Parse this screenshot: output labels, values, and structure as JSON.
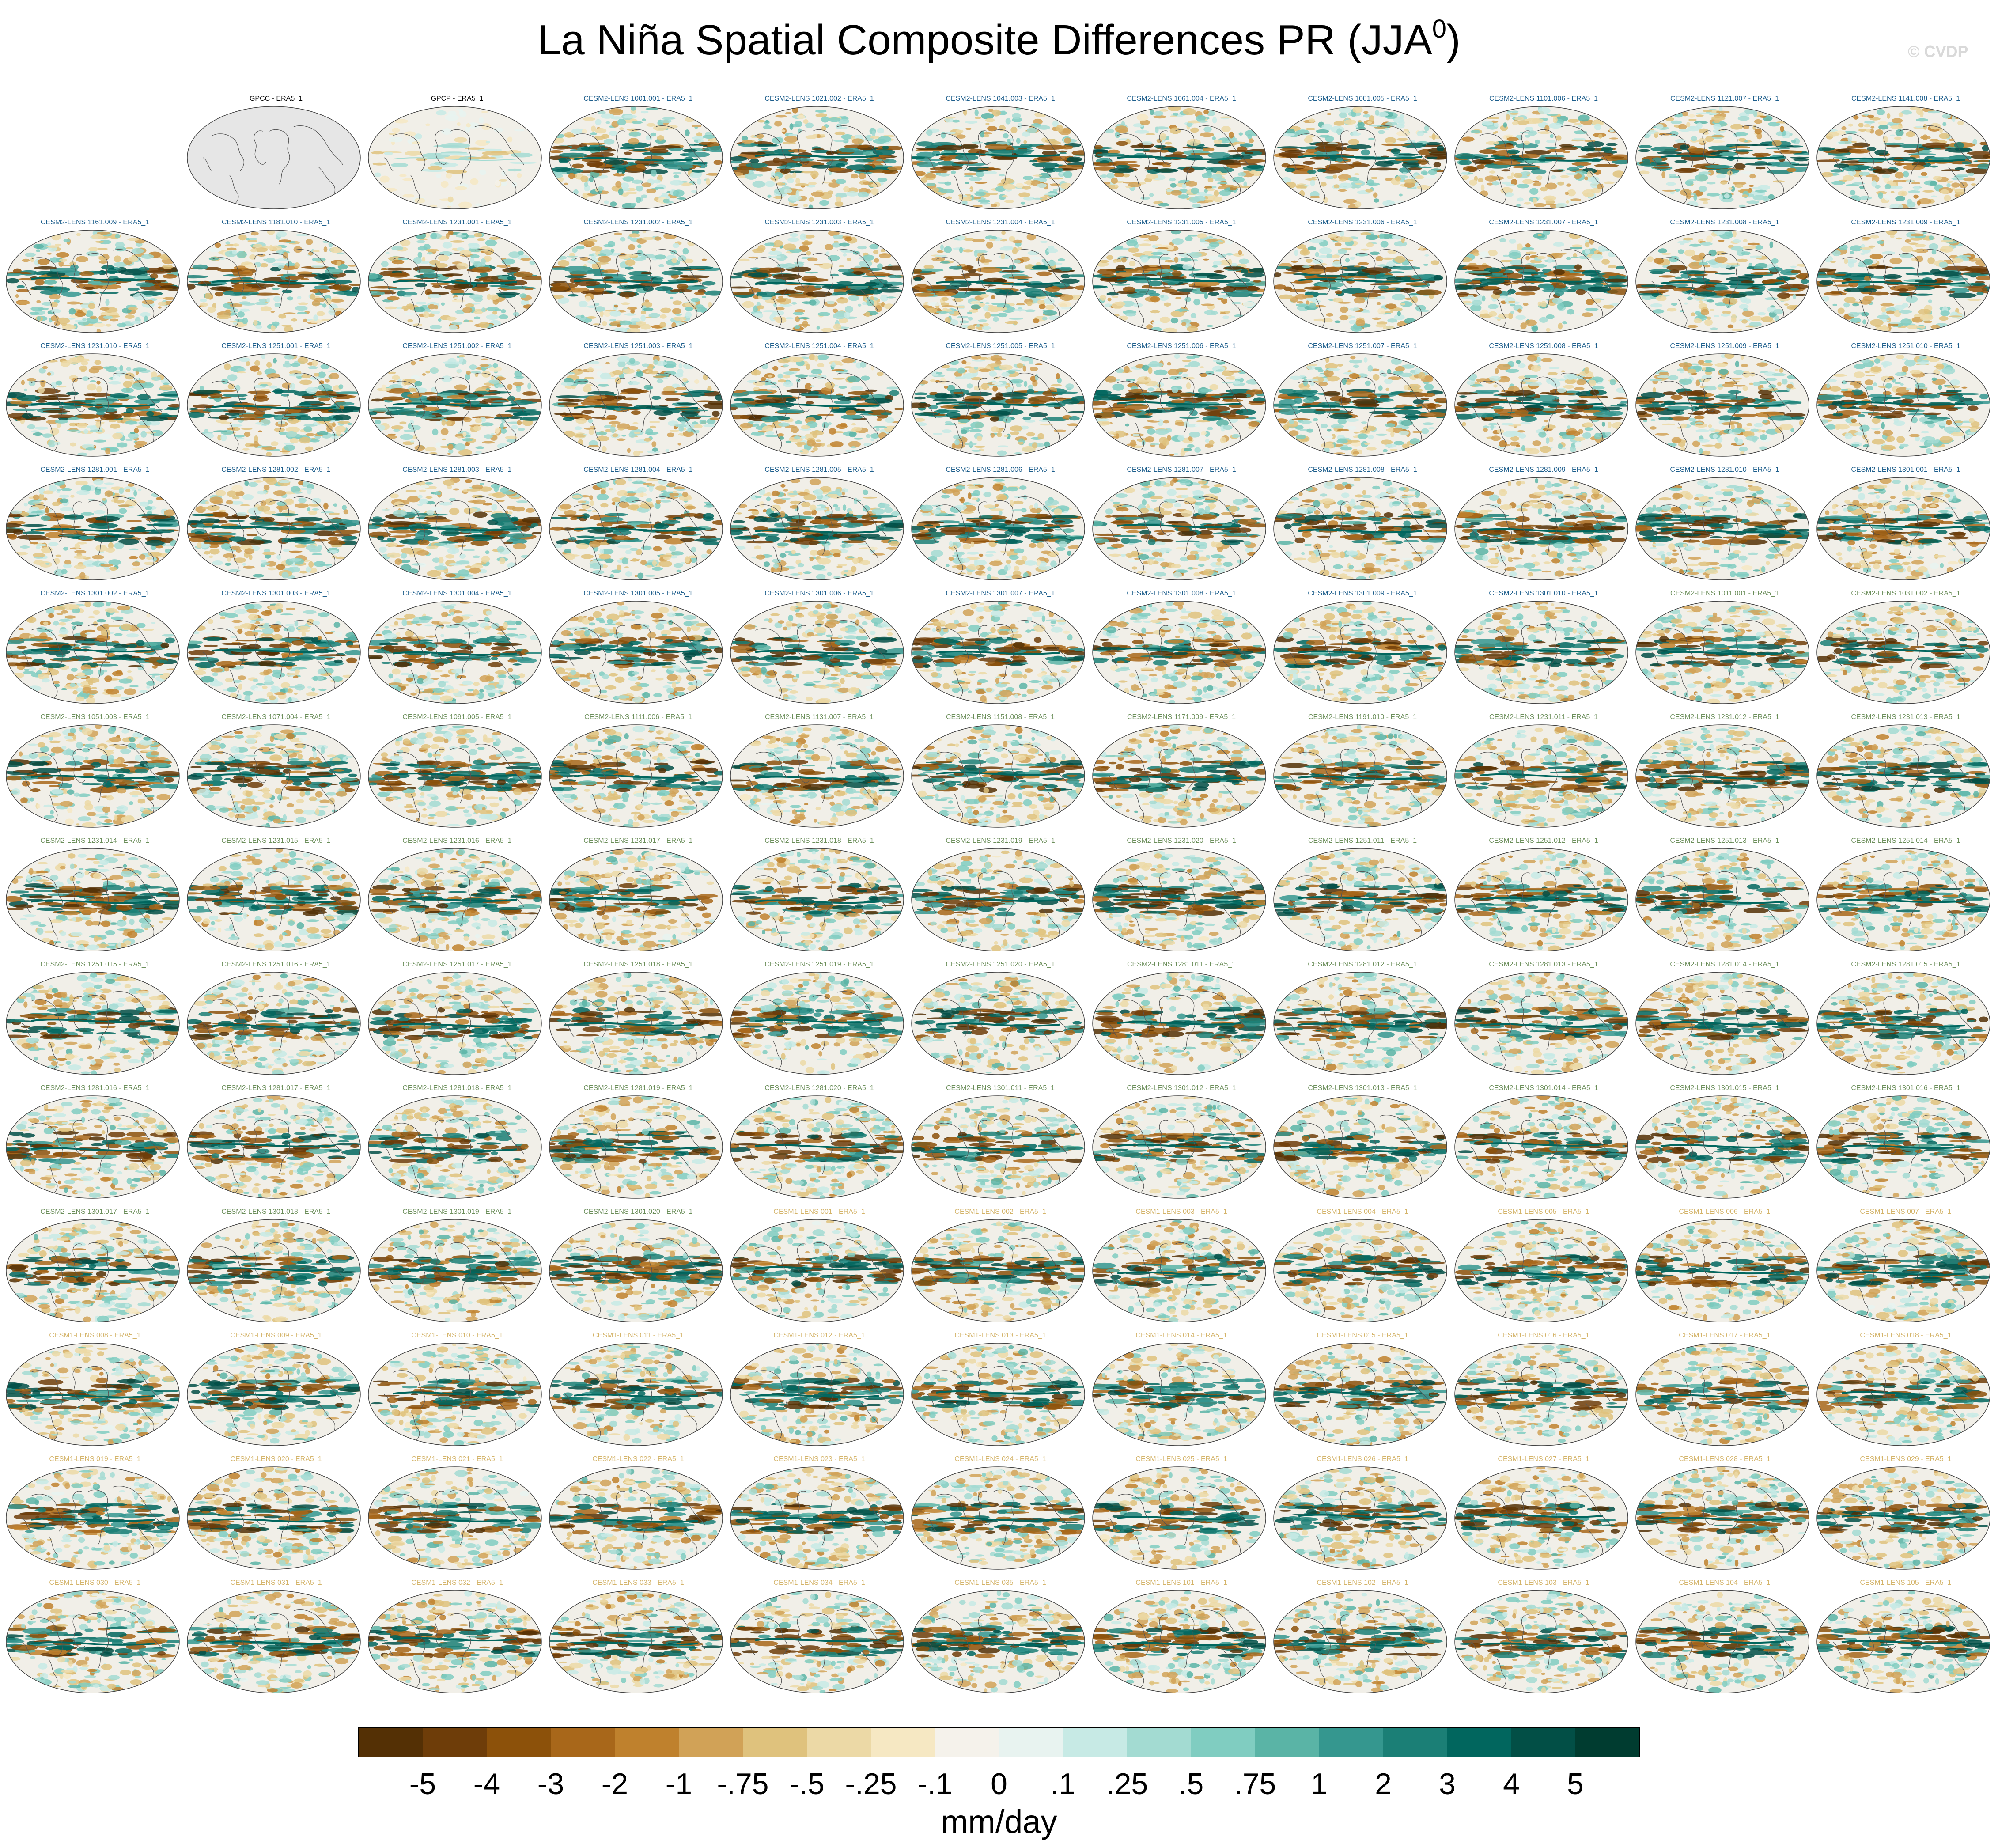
{
  "title_main": "La Niña Spatial Composite Differences PR (JJA",
  "title_sup": "0",
  "title_close": ")",
  "watermark": "© CVDP",
  "colors": {
    "obs_label": "#000000",
    "cesm2_smbb_label": "#1d5e8c",
    "cesm2_cmip6_label": "#6b8e5a",
    "cesm1_label": "#d4b46a",
    "land": "#f1efe8",
    "coast": "#555555"
  },
  "chart_data": {
    "type": "heatmap",
    "variable": "PR",
    "season": "JJA",
    "layout": "13 rows x 11 columns of small-multiple global maps",
    "panels": [
      "",
      "GPCC - ERA5_1",
      "GPCP - ERA5_1",
      "CESM2-LENS 1001.001 - ERA5_1",
      "CESM2-LENS 1021.002 - ERA5_1",
      "CESM2-LENS 1041.003 - ERA5_1",
      "CESM2-LENS 1061.004 - ERA5_1",
      "CESM2-LENS 1081.005 - ERA5_1",
      "CESM2-LENS 1101.006 - ERA5_1",
      "CESM2-LENS 1121.007 - ERA5_1",
      "CESM2-LENS 1141.008 - ERA5_1",
      "CESM2-LENS 1161.009 - ERA5_1",
      "CESM2-LENS 1181.010 - ERA5_1",
      "CESM2-LENS 1231.001 - ERA5_1",
      "CESM2-LENS 1231.002 - ERA5_1",
      "CESM2-LENS 1231.003 - ERA5_1",
      "CESM2-LENS 1231.004 - ERA5_1",
      "CESM2-LENS 1231.005 - ERA5_1",
      "CESM2-LENS 1231.006 - ERA5_1",
      "CESM2-LENS 1231.007 - ERA5_1",
      "CESM2-LENS 1231.008 - ERA5_1",
      "CESM2-LENS 1231.009 - ERA5_1",
      "CESM2-LENS 1231.010 - ERA5_1",
      "CESM2-LENS 1251.001 - ERA5_1",
      "CESM2-LENS 1251.002 - ERA5_1",
      "CESM2-LENS 1251.003 - ERA5_1",
      "CESM2-LENS 1251.004 - ERA5_1",
      "CESM2-LENS 1251.005 - ERA5_1",
      "CESM2-LENS 1251.006 - ERA5_1",
      "CESM2-LENS 1251.007 - ERA5_1",
      "CESM2-LENS 1251.008 - ERA5_1",
      "CESM2-LENS 1251.009 - ERA5_1",
      "CESM2-LENS 1251.010 - ERA5_1",
      "CESM2-LENS 1281.001 - ERA5_1",
      "CESM2-LENS 1281.002 - ERA5_1",
      "CESM2-LENS 1281.003 - ERA5_1",
      "CESM2-LENS 1281.004 - ERA5_1",
      "CESM2-LENS 1281.005 - ERA5_1",
      "CESM2-LENS 1281.006 - ERA5_1",
      "CESM2-LENS 1281.007 - ERA5_1",
      "CESM2-LENS 1281.008 - ERA5_1",
      "CESM2-LENS 1281.009 - ERA5_1",
      "CESM2-LENS 1281.010 - ERA5_1",
      "CESM2-LENS 1301.001 - ERA5_1",
      "CESM2-LENS 1301.002 - ERA5_1",
      "CESM2-LENS 1301.003 - ERA5_1",
      "CESM2-LENS 1301.004 - ERA5_1",
      "CESM2-LENS 1301.005 - ERA5_1",
      "CESM2-LENS 1301.006 - ERA5_1",
      "CESM2-LENS 1301.007 - ERA5_1",
      "CESM2-LENS 1301.008 - ERA5_1",
      "CESM2-LENS 1301.009 - ERA5_1",
      "CESM2-LENS 1301.010 - ERA5_1",
      "CESM2-LENS 1011.001 - ERA5_1",
      "CESM2-LENS 1031.002 - ERA5_1",
      "CESM2-LENS 1051.003 - ERA5_1",
      "CESM2-LENS 1071.004 - ERA5_1",
      "CESM2-LENS 1091.005 - ERA5_1",
      "CESM2-LENS 1111.006 - ERA5_1",
      "CESM2-LENS 1131.007 - ERA5_1",
      "CESM2-LENS 1151.008 - ERA5_1",
      "CESM2-LENS 1171.009 - ERA5_1",
      "CESM2-LENS 1191.010 - ERA5_1",
      "CESM2-LENS 1231.011 - ERA5_1",
      "CESM2-LENS 1231.012 - ERA5_1",
      "CESM2-LENS 1231.013 - ERA5_1",
      "CESM2-LENS 1231.014 - ERA5_1",
      "CESM2-LENS 1231.015 - ERA5_1",
      "CESM2-LENS 1231.016 - ERA5_1",
      "CESM2-LENS 1231.017 - ERA5_1",
      "CESM2-LENS 1231.018 - ERA5_1",
      "CESM2-LENS 1231.019 - ERA5_1",
      "CESM2-LENS 1231.020 - ERA5_1",
      "CESM2-LENS 1251.011 - ERA5_1",
      "CESM2-LENS 1251.012 - ERA5_1",
      "CESM2-LENS 1251.013 - ERA5_1",
      "CESM2-LENS 1251.014 - ERA5_1",
      "CESM2-LENS 1251.015 - ERA5_1",
      "CESM2-LENS 1251.016 - ERA5_1",
      "CESM2-LENS 1251.017 - ERA5_1",
      "CESM2-LENS 1251.018 - ERA5_1",
      "CESM2-LENS 1251.019 - ERA5_1",
      "CESM2-LENS 1251.020 - ERA5_1",
      "CESM2-LENS 1281.011 - ERA5_1",
      "CESM2-LENS 1281.012 - ERA5_1",
      "CESM2-LENS 1281.013 - ERA5_1",
      "CESM2-LENS 1281.014 - ERA5_1",
      "CESM2-LENS 1281.015 - ERA5_1",
      "CESM2-LENS 1281.016 - ERA5_1",
      "CESM2-LENS 1281.017 - ERA5_1",
      "CESM2-LENS 1281.018 - ERA5_1",
      "CESM2-LENS 1281.019 - ERA5_1",
      "CESM2-LENS 1281.020 - ERA5_1",
      "CESM2-LENS 1301.011 - ERA5_1",
      "CESM2-LENS 1301.012 - ERA5_1",
      "CESM2-LENS 1301.013 - ERA5_1",
      "CESM2-LENS 1301.014 - ERA5_1",
      "CESM2-LENS 1301.015 - ERA5_1",
      "CESM2-LENS 1301.016 - ERA5_1",
      "CESM2-LENS 1301.017 - ERA5_1",
      "CESM2-LENS 1301.018 - ERA5_1",
      "CESM2-LENS 1301.019 - ERA5_1",
      "CESM2-LENS 1301.020 - ERA5_1",
      "CESM1-LENS 001 - ERA5_1",
      "CESM1-LENS 002 - ERA5_1",
      "CESM1-LENS 003 - ERA5_1",
      "CESM1-LENS 004 - ERA5_1",
      "CESM1-LENS 005 - ERA5_1",
      "CESM1-LENS 006 - ERA5_1",
      "CESM1-LENS 007 - ERA5_1",
      "CESM1-LENS 008 - ERA5_1",
      "CESM1-LENS 009 - ERA5_1",
      "CESM1-LENS 010 - ERA5_1",
      "CESM1-LENS 011 - ERA5_1",
      "CESM1-LENS 012 - ERA5_1",
      "CESM1-LENS 013 - ERA5_1",
      "CESM1-LENS 014 - ERA5_1",
      "CESM1-LENS 015 - ERA5_1",
      "CESM1-LENS 016 - ERA5_1",
      "CESM1-LENS 017 - ERA5_1",
      "CESM1-LENS 018 - ERA5_1",
      "CESM1-LENS 019 - ERA5_1",
      "CESM1-LENS 020 - ERA5_1",
      "CESM1-LENS 021 - ERA5_1",
      "CESM1-LENS 022 - ERA5_1",
      "CESM1-LENS 023 - ERA5_1",
      "CESM1-LENS 024 - ERA5_1",
      "CESM1-LENS 025 - ERA5_1",
      "CESM1-LENS 026 - ERA5_1",
      "CESM1-LENS 027 - ERA5_1",
      "CESM1-LENS 028 - ERA5_1",
      "CESM1-LENS 029 - ERA5_1",
      "CESM1-LENS 030 - ERA5_1",
      "CESM1-LENS 031 - ERA5_1",
      "CESM1-LENS 032 - ERA5_1",
      "CESM1-LENS 033 - ERA5_1",
      "CESM1-LENS 034 - ERA5_1",
      "CESM1-LENS 035 - ERA5_1",
      "CESM1-LENS 101 - ERA5_1",
      "CESM1-LENS 102 - ERA5_1",
      "CESM1-LENS 103 - ERA5_1",
      "CESM1-LENS 104 - ERA5_1",
      "CESM1-LENS 105 - ERA5_1"
    ],
    "colorbar": {
      "ticks": [
        "-5",
        "-4",
        "-3",
        "-2",
        "-1",
        "-.75",
        "-.5",
        "-.25",
        "-.1",
        "0",
        ".1",
        ".25",
        ".5",
        ".75",
        "1",
        "2",
        "3",
        "4",
        "5"
      ],
      "colors": [
        "#543005",
        "#6e3d09",
        "#8c510a",
        "#a8671a",
        "#bf812d",
        "#d1a257",
        "#dfc27d",
        "#ecd9a6",
        "#f6e8c3",
        "#f5f2eb",
        "#e8f3f0",
        "#c7eae5",
        "#a3dbd2",
        "#80cdc1",
        "#5ab4a6",
        "#35978f",
        "#1b7f76",
        "#01665e",
        "#024f46",
        "#003c30"
      ],
      "unit": "mm/day"
    }
  }
}
